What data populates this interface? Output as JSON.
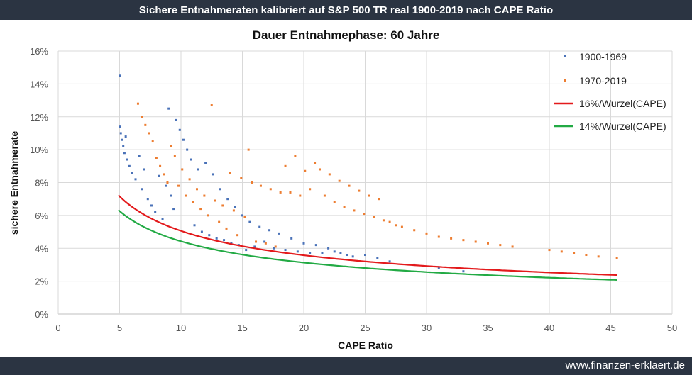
{
  "header": {
    "title": "Sichere Entnahmeraten kalibriert auf S&P 500 TR real 1900-2019 nach CAPE Ratio"
  },
  "footer": {
    "url": "www.finanzen-erklaert.de"
  },
  "colors": {
    "banner": "#2b3442",
    "series_1900": "#4a72b8",
    "series_1970": "#ed7d31",
    "curve_16": "#e31a1c",
    "curve_14": "#22aa44"
  },
  "chart_data": {
    "type": "scatter",
    "title": "Dauer Entnahmephase: 60 Jahre",
    "xlabel": "CAPE Ratio",
    "ylabel": "sichere Entnahmerate",
    "xlim": [
      0,
      50
    ],
    "ylim": [
      0,
      16
    ],
    "x_ticks": [
      "0",
      "5",
      "10",
      "15",
      "20",
      "25",
      "30",
      "35",
      "40",
      "45",
      "50"
    ],
    "y_ticks": [
      "0%",
      "2%",
      "4%",
      "6%",
      "8%",
      "10%",
      "12%",
      "14%",
      "16%"
    ],
    "grid": true,
    "legend_position": "top-right",
    "series": [
      {
        "name": "1900-1969",
        "kind": "points",
        "color": "#4a72b8",
        "points": [
          [
            5.0,
            14.5
          ],
          [
            5.0,
            11.4
          ],
          [
            5.1,
            11.0
          ],
          [
            5.2,
            10.6
          ],
          [
            5.3,
            10.2
          ],
          [
            5.4,
            9.8
          ],
          [
            5.5,
            10.8
          ],
          [
            5.6,
            9.4
          ],
          [
            5.8,
            9.0
          ],
          [
            6.0,
            8.6
          ],
          [
            6.3,
            8.2
          ],
          [
            6.6,
            9.6
          ],
          [
            6.8,
            7.6
          ],
          [
            7.0,
            8.8
          ],
          [
            7.3,
            7.0
          ],
          [
            7.6,
            6.6
          ],
          [
            7.9,
            6.2
          ],
          [
            8.2,
            8.4
          ],
          [
            8.5,
            5.8
          ],
          [
            8.8,
            7.8
          ],
          [
            9.0,
            12.5
          ],
          [
            9.2,
            7.2
          ],
          [
            9.4,
            6.4
          ],
          [
            9.6,
            11.8
          ],
          [
            9.9,
            11.2
          ],
          [
            10.2,
            10.6
          ],
          [
            10.5,
            10.0
          ],
          [
            10.8,
            9.4
          ],
          [
            11.1,
            5.4
          ],
          [
            11.4,
            8.8
          ],
          [
            11.7,
            5.0
          ],
          [
            12.0,
            9.2
          ],
          [
            12.3,
            4.8
          ],
          [
            12.6,
            8.5
          ],
          [
            12.9,
            4.6
          ],
          [
            13.2,
            7.6
          ],
          [
            13.5,
            4.5
          ],
          [
            13.8,
            7.0
          ],
          [
            14.1,
            4.3
          ],
          [
            14.4,
            6.5
          ],
          [
            14.7,
            4.2
          ],
          [
            15.0,
            6.0
          ],
          [
            15.3,
            3.9
          ],
          [
            15.6,
            5.6
          ],
          [
            16.0,
            4.1
          ],
          [
            16.4,
            5.3
          ],
          [
            16.8,
            4.4
          ],
          [
            17.2,
            5.1
          ],
          [
            17.6,
            4.0
          ],
          [
            18.0,
            4.9
          ],
          [
            18.5,
            3.9
          ],
          [
            19.0,
            4.6
          ],
          [
            19.5,
            3.8
          ],
          [
            20.0,
            4.3
          ],
          [
            20.5,
            3.7
          ],
          [
            21.0,
            4.2
          ],
          [
            21.5,
            3.7
          ],
          [
            22.0,
            4.0
          ],
          [
            22.5,
            3.8
          ],
          [
            23.0,
            3.7
          ],
          [
            23.5,
            3.6
          ],
          [
            24.0,
            3.5
          ],
          [
            25.0,
            3.6
          ],
          [
            26.0,
            3.4
          ],
          [
            27.0,
            3.2
          ],
          [
            29.0,
            3.0
          ],
          [
            31.0,
            2.8
          ],
          [
            33.0,
            2.6
          ]
        ]
      },
      {
        "name": "1970-2019",
        "kind": "points",
        "color": "#ed7d31",
        "points": [
          [
            6.5,
            12.8
          ],
          [
            6.8,
            12.0
          ],
          [
            7.1,
            11.5
          ],
          [
            7.4,
            11.0
          ],
          [
            7.7,
            10.5
          ],
          [
            8.0,
            9.5
          ],
          [
            8.3,
            9.0
          ],
          [
            8.6,
            8.5
          ],
          [
            8.9,
            8.0
          ],
          [
            9.2,
            10.2
          ],
          [
            9.5,
            9.6
          ],
          [
            9.8,
            7.8
          ],
          [
            10.1,
            8.8
          ],
          [
            10.4,
            7.2
          ],
          [
            10.7,
            8.2
          ],
          [
            11.0,
            6.8
          ],
          [
            11.3,
            7.6
          ],
          [
            11.6,
            6.4
          ],
          [
            11.9,
            7.2
          ],
          [
            12.2,
            6.0
          ],
          [
            12.5,
            12.7
          ],
          [
            12.8,
            6.9
          ],
          [
            13.1,
            5.6
          ],
          [
            13.4,
            6.6
          ],
          [
            13.7,
            5.2
          ],
          [
            14.0,
            8.6
          ],
          [
            14.3,
            6.3
          ],
          [
            14.6,
            4.8
          ],
          [
            14.9,
            8.3
          ],
          [
            15.2,
            5.9
          ],
          [
            15.5,
            10.0
          ],
          [
            15.8,
            8.0
          ],
          [
            16.1,
            4.4
          ],
          [
            16.5,
            7.8
          ],
          [
            16.9,
            4.3
          ],
          [
            17.3,
            7.6
          ],
          [
            17.7,
            4.1
          ],
          [
            18.1,
            7.4
          ],
          [
            18.5,
            9.0
          ],
          [
            18.9,
            7.4
          ],
          [
            19.3,
            9.6
          ],
          [
            19.7,
            7.2
          ],
          [
            20.1,
            8.7
          ],
          [
            20.5,
            7.6
          ],
          [
            20.9,
            9.2
          ],
          [
            21.3,
            8.8
          ],
          [
            21.7,
            7.2
          ],
          [
            22.1,
            8.5
          ],
          [
            22.5,
            6.8
          ],
          [
            22.9,
            8.1
          ],
          [
            23.3,
            6.5
          ],
          [
            23.7,
            7.8
          ],
          [
            24.1,
            6.3
          ],
          [
            24.5,
            7.5
          ],
          [
            24.9,
            6.1
          ],
          [
            25.3,
            7.2
          ],
          [
            25.7,
            5.9
          ],
          [
            26.1,
            7.0
          ],
          [
            26.5,
            5.7
          ],
          [
            27.0,
            5.6
          ],
          [
            27.5,
            5.4
          ],
          [
            28.0,
            5.3
          ],
          [
            29.0,
            5.1
          ],
          [
            30.0,
            4.9
          ],
          [
            31.0,
            4.7
          ],
          [
            32.0,
            4.6
          ],
          [
            33.0,
            4.5
          ],
          [
            34.0,
            4.4
          ],
          [
            35.0,
            4.3
          ],
          [
            36.0,
            4.2
          ],
          [
            37.0,
            4.1
          ],
          [
            40.0,
            3.9
          ],
          [
            41.0,
            3.8
          ],
          [
            42.0,
            3.7
          ],
          [
            43.0,
            3.6
          ],
          [
            44.0,
            3.5
          ],
          [
            45.5,
            3.4
          ]
        ]
      },
      {
        "name": "16%/Wurzel(CAPE)",
        "kind": "line",
        "color": "#e31a1c",
        "coefficient": 16,
        "x_range": [
          4.9,
          45.5
        ]
      },
      {
        "name": "14%/Wurzel(CAPE)",
        "kind": "line",
        "color": "#22aa44",
        "coefficient": 14,
        "x_range": [
          4.9,
          45.5
        ]
      }
    ]
  }
}
